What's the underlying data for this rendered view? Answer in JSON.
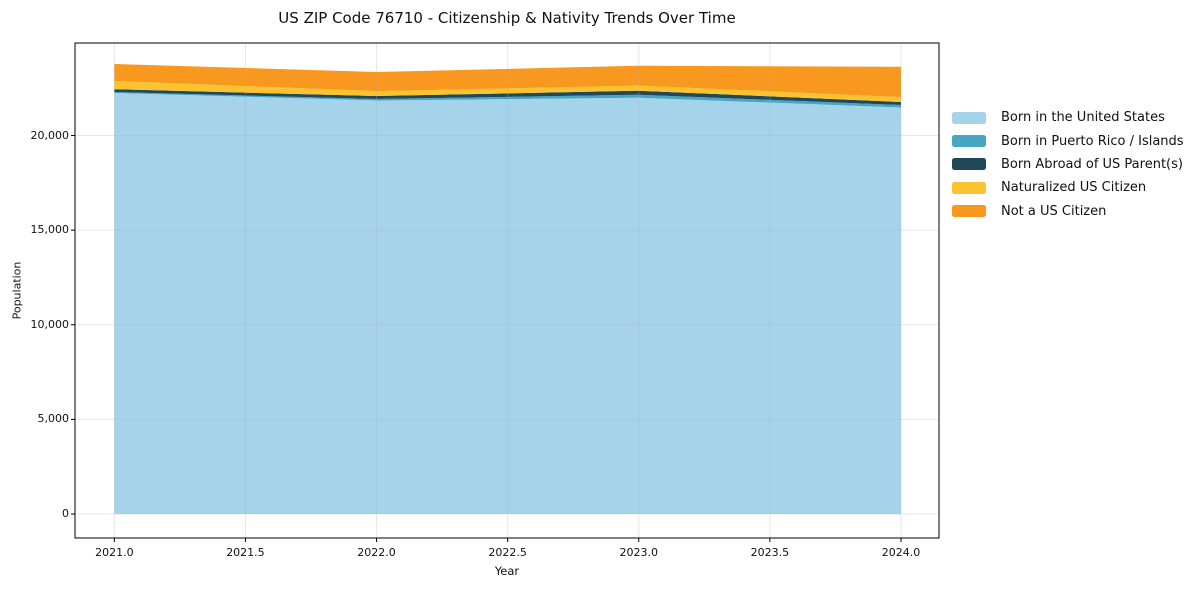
{
  "chart": {
    "title": "US ZIP Code 76710 - Citizenship & Nativity Trends Over Time",
    "xlabel": "Year",
    "ylabel": "Population"
  },
  "chart_data": {
    "type": "area",
    "stacked": true,
    "title": "US ZIP Code 76710 - Citizenship & Nativity Trends Over Time",
    "xlabel": "Year",
    "ylabel": "Population",
    "x": [
      2021,
      2022,
      2023,
      2024
    ],
    "series": [
      {
        "name": "Born in the United States",
        "color": "#a5d3ea",
        "values": [
          22250,
          21850,
          22000,
          21480
        ]
      },
      {
        "name": "Born in Puerto Rico / Islands",
        "color": "#45a7c4",
        "values": [
          50,
          80,
          160,
          135
        ]
      },
      {
        "name": "Born Abroad of US Parent(s)",
        "color": "#21485a",
        "values": [
          150,
          160,
          210,
          155
        ]
      },
      {
        "name": "Naturalized US Citizen",
        "color": "#fcc330",
        "values": [
          430,
          260,
          270,
          260
        ]
      },
      {
        "name": "Not a US Citizen",
        "color": "#f8981f",
        "values": [
          900,
          1010,
          1050,
          1600
        ]
      }
    ],
    "totals": [
      23780,
      23360,
      23690,
      23630
    ],
    "xlim": [
      2020.85,
      2024.145
    ],
    "ylim": [
      -1268,
      24890
    ],
    "xticks": [
      2021.0,
      2021.5,
      2022.0,
      2022.5,
      2023.0,
      2023.5,
      2024.0
    ],
    "xtick_labels": [
      "2021.0",
      "2021.5",
      "2022.0",
      "2022.5",
      "2023.0",
      "2023.5",
      "2024.0"
    ],
    "yticks": [
      0,
      5000,
      10000,
      15000,
      20000
    ],
    "ytick_labels": [
      "0",
      "5,000",
      "10,000",
      "15,000",
      "20,000"
    ],
    "grid": true,
    "grid_color": "#b0b0b0",
    "grid_opacity": 0.3,
    "spine_color": "#000000",
    "legend_position": "right-outside"
  }
}
